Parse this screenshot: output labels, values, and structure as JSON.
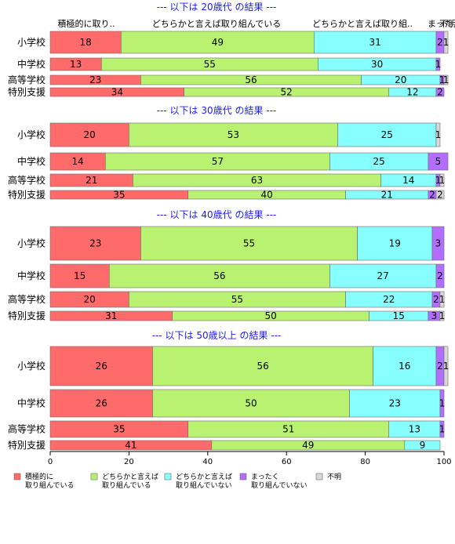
{
  "chart_data": {
    "type": "bar",
    "orientation": "horizontal",
    "stacked": true,
    "xlim": [
      0,
      100
    ],
    "ticks": [
      "0",
      "20",
      "40",
      "60",
      "80",
      "100"
    ],
    "grid": false,
    "legend_position": "bottom",
    "top_labels": [
      "積極的に取り..",
      "どちらかと言えば取り組んでいる",
      "どちらかと言えば取り組..",
      "まった..",
      "不明"
    ],
    "series": [
      {
        "name": "積極的に\n取り組んでいる",
        "color": "#ff6a6a"
      },
      {
        "name": "どちらかと言えば\n取り組んでいる",
        "color": "#b8f270"
      },
      {
        "name": "どちらかと言えば\n取り組んでいない",
        "color": "#88ffff"
      },
      {
        "name": "まったく\n取り組んでいない",
        "color": "#b46eff"
      },
      {
        "name": "不明",
        "color": "#d9d9d9"
      }
    ],
    "groups": [
      {
        "title": "--- 以下は 20歳代 の結果 ---",
        "rows": [
          {
            "label": "小学校",
            "values": [
              18,
              49,
              31,
              2,
              1
            ],
            "labels": [
              "18",
              "49",
              "31",
              "2",
              "1"
            ]
          },
          {
            "label": "中学校",
            "values": [
              13,
              55,
              30,
              1,
              0
            ],
            "labels": [
              "13",
              "55",
              "30",
              "1",
              ""
            ]
          },
          {
            "label": "高等学校",
            "values": [
              23,
              56,
              20,
              1,
              1
            ],
            "labels": [
              "23",
              "56",
              "20",
              "1",
              "1"
            ]
          },
          {
            "label": "特別支援",
            "values": [
              34,
              52,
              12,
              2,
              0
            ],
            "labels": [
              "34",
              "52",
              "12",
              "2",
              ""
            ]
          }
        ]
      },
      {
        "title": "--- 以下は 30歳代 の結果 ---",
        "rows": [
          {
            "label": "小学校",
            "values": [
              20,
              53,
              25,
              0,
              1
            ],
            "labels": [
              "20",
              "53",
              "25",
              "",
              "1"
            ]
          },
          {
            "label": "中学校",
            "values": [
              14,
              57,
              25,
              5,
              0
            ],
            "labels": [
              "14",
              "57",
              "25",
              "5",
              ""
            ]
          },
          {
            "label": "高等学校",
            "values": [
              21,
              63,
              14,
              1,
              1
            ],
            "labels": [
              "21",
              "63",
              "14",
              "1",
              "1"
            ]
          },
          {
            "label": "特別支援",
            "values": [
              35,
              40,
              21,
              2,
              2
            ],
            "labels": [
              "35",
              "40",
              "21",
              "2",
              "2"
            ]
          }
        ]
      },
      {
        "title": "--- 以下は 40歳代 の結果 ---",
        "rows": [
          {
            "label": "小学校",
            "values": [
              23,
              55,
              19,
              3,
              0
            ],
            "labels": [
              "23",
              "55",
              "19",
              "3",
              ""
            ]
          },
          {
            "label": "中学校",
            "values": [
              15,
              56,
              27,
              2,
              0
            ],
            "labels": [
              "15",
              "56",
              "27",
              "2",
              ""
            ]
          },
          {
            "label": "高等学校",
            "values": [
              20,
              55,
              22,
              2,
              1
            ],
            "labels": [
              "20",
              "55",
              "22",
              "2",
              "1"
            ]
          },
          {
            "label": "特別支援",
            "values": [
              31,
              50,
              15,
              3,
              1
            ],
            "labels": [
              "31",
              "50",
              "15",
              "3",
              "1"
            ]
          }
        ]
      },
      {
        "title": "--- 以下は 50歳以上 の結果 ---",
        "rows": [
          {
            "label": "小学校",
            "values": [
              26,
              56,
              16,
              2,
              1
            ],
            "labels": [
              "26",
              "56",
              "16",
              "2",
              "1"
            ]
          },
          {
            "label": "中学校",
            "values": [
              26,
              50,
              23,
              1,
              0
            ],
            "labels": [
              "26",
              "50",
              "23",
              "1",
              ""
            ]
          },
          {
            "label": "高等学校",
            "values": [
              35,
              51,
              13,
              1,
              0
            ],
            "labels": [
              "35",
              "51",
              "13",
              "1",
              ""
            ]
          },
          {
            "label": "特別支援",
            "values": [
              41,
              49,
              9,
              0,
              0
            ],
            "labels": [
              "41",
              "49",
              "9",
              "",
              ""
            ]
          }
        ]
      }
    ]
  }
}
